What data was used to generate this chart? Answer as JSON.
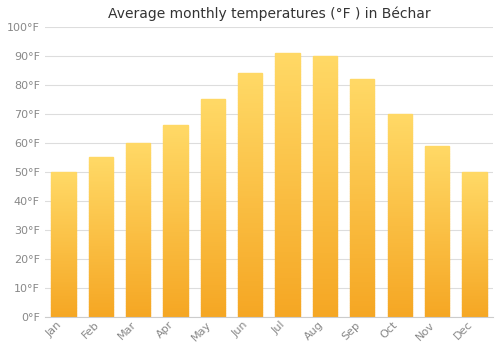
{
  "title": "Average monthly temperatures (°F ) in Béchar",
  "months": [
    "Jan",
    "Feb",
    "Mar",
    "Apr",
    "May",
    "Jun",
    "Jul",
    "Aug",
    "Sep",
    "Oct",
    "Nov",
    "Dec"
  ],
  "values": [
    50,
    55,
    60,
    66,
    75,
    84,
    91,
    90,
    82,
    70,
    59,
    50
  ],
  "bar_color_bottom": "#F5A623",
  "bar_color_top": "#FFD966",
  "background_color": "#FFFFFF",
  "grid_color": "#DDDDDD",
  "ylim": [
    0,
    100
  ],
  "yticks": [
    0,
    10,
    20,
    30,
    40,
    50,
    60,
    70,
    80,
    90,
    100
  ],
  "ytick_labels": [
    "0°F",
    "10°F",
    "20°F",
    "30°F",
    "40°F",
    "50°F",
    "60°F",
    "70°F",
    "80°F",
    "90°F",
    "100°F"
  ],
  "title_fontsize": 10,
  "tick_fontsize": 8,
  "tick_color": "#888888",
  "spine_color": "#CCCCCC",
  "bar_width": 0.65
}
